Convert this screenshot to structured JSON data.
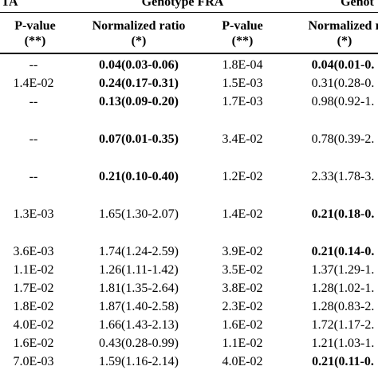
{
  "header": {
    "group_left": "TA",
    "group_mid": "Genotype FRA",
    "group_right": "Genot"
  },
  "columns": [
    {
      "label": "P-value",
      "sub": "(**)"
    },
    {
      "label": "Normalized ratio",
      "sub": "(*)"
    },
    {
      "label": "P-value",
      "sub": "(**)"
    },
    {
      "label": "Normalized r",
      "sub": "(*)"
    }
  ],
  "rows": [
    {
      "p1": "--",
      "r1": "0.04(0.03-0.06)",
      "r1_bold": true,
      "p2": "1.8E-04",
      "r2": "0.04(0.01-0.",
      "r2_bold": true
    },
    {
      "p1": "1.4E-02",
      "r1": "0.24(0.17-0.31)",
      "r1_bold": true,
      "p2": "1.5E-03",
      "r2": "0.31(0.28-0.",
      "r2_bold": false
    },
    {
      "p1": "--",
      "r1": "0.13(0.09-0.20)",
      "r1_bold": true,
      "p2": "1.7E-03",
      "r2": "0.98(0.92-1.",
      "r2_bold": false
    },
    {
      "p1": "--",
      "r1": "0.07(0.01-0.35)",
      "r1_bold": true,
      "p2": "3.4E-02",
      "r2": "0.78(0.39-2.",
      "r2_bold": false
    },
    {
      "p1": "--",
      "r1": "0.21(0.10-0.40)",
      "r1_bold": true,
      "p2": "1.2E-02",
      "r2": "2.33(1.78-3.",
      "r2_bold": false
    },
    {
      "p1": "1.3E-03",
      "r1": "1.65(1.30-2.07)",
      "r1_bold": false,
      "p2": "1.4E-02",
      "r2": "0.21(0.18-0.",
      "r2_bold": true
    },
    {
      "p1": "3.6E-03",
      "r1": "1.74(1.24-2.59)",
      "r1_bold": false,
      "p2": "3.9E-02",
      "r2": "0.21(0.14-0.",
      "r2_bold": true
    },
    {
      "p1": "1.1E-02",
      "r1": "1.26(1.11-1.42)",
      "r1_bold": false,
      "p2": "3.5E-02",
      "r2": "1.37(1.29-1.",
      "r2_bold": false
    },
    {
      "p1": "1.7E-02",
      "r1": "1.81(1.35-2.64)",
      "r1_bold": false,
      "p2": "3.8E-02",
      "r2": "1.28(1.02-1.",
      "r2_bold": false
    },
    {
      "p1": "1.8E-02",
      "r1": "1.87(1.40-2.58)",
      "r1_bold": false,
      "p2": "2.3E-02",
      "r2": "1.28(0.83-2.",
      "r2_bold": false
    },
    {
      "p1": "4.0E-02",
      "r1": "1.66(1.43-2.13)",
      "r1_bold": false,
      "p2": "1.6E-02",
      "r2": "1.72(1.17-2.",
      "r2_bold": false
    },
    {
      "p1": "1.6E-02",
      "r1": "0.43(0.28-0.99)",
      "r1_bold": false,
      "p2": "1.1E-02",
      "r2": "1.21(1.03-1.",
      "r2_bold": false
    },
    {
      "p1": "7.0E-03",
      "r1": "1.59(1.16-2.14)",
      "r1_bold": false,
      "p2": "4.0E-02",
      "r2": "0.21(0.11-0.",
      "r2_bold": true
    }
  ]
}
